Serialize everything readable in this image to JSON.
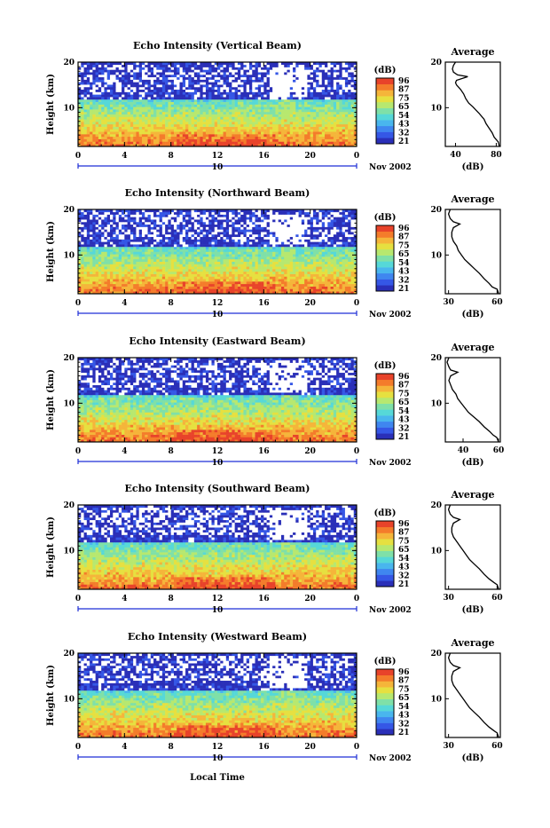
{
  "colors": {
    "scale": [
      "#2a2fb8",
      "#3557e6",
      "#3f86f0",
      "#49b6ee",
      "#56d8d8",
      "#7fe0a8",
      "#b7e86f",
      "#e6e040",
      "#f5b53a",
      "#f47c2b",
      "#e8432a"
    ],
    "accent_blue": "#1f2fd6"
  },
  "date_label": "Nov 2002",
  "date_day": "10",
  "xlabel": "Local Time",
  "avg_xlabel": "(dB)",
  "chart_data": [
    {
      "type": "heatmap",
      "title": "Echo Intensity (Vertical Beam)",
      "ylabel": "Height (km)",
      "xlabel": "Local Time",
      "x_ticks": [
        "0",
        "4",
        "8",
        "12",
        "16",
        "20",
        "0"
      ],
      "y_ticks": [
        "10",
        "20"
      ],
      "xlim": [
        0,
        24
      ],
      "ylim": [
        1.5,
        20
      ],
      "colorbar": {
        "label": "(dB)",
        "ticks": [
          "96",
          "87",
          "75",
          "65",
          "54",
          "43",
          "32",
          "21"
        ]
      },
      "average": {
        "title": "Average",
        "xlabel": "(dB)",
        "x_ticks": [
          "40",
          "80"
        ],
        "xlim": [
          30,
          84
        ],
        "y_ticks": [
          "10",
          "20"
        ],
        "profile": [
          [
            83,
            1.5
          ],
          [
            82,
            2.5
          ],
          [
            80,
            3.0
          ],
          [
            78,
            3.5
          ],
          [
            76,
            4.5
          ],
          [
            73,
            5.5
          ],
          [
            70,
            6.5
          ],
          [
            68,
            7.5
          ],
          [
            66,
            8.0
          ],
          [
            63,
            8.8
          ],
          [
            60,
            9.5
          ],
          [
            57,
            10.2
          ],
          [
            53,
            11.0
          ],
          [
            50,
            12.0
          ],
          [
            48,
            13.0
          ],
          [
            45,
            14.0
          ],
          [
            41,
            15.0
          ],
          [
            40,
            15.5
          ],
          [
            41,
            16.0
          ],
          [
            52,
            16.8
          ],
          [
            42,
            17.2
          ],
          [
            38,
            17.8
          ],
          [
            37,
            18.5
          ],
          [
            38,
            19.3
          ],
          [
            40,
            20.0
          ]
        ]
      }
    },
    {
      "type": "heatmap",
      "title": "Echo Intensity (Northward Beam)",
      "ylabel": "Height (km)",
      "xlabel": "Local Time",
      "x_ticks": [
        "0",
        "4",
        "8",
        "12",
        "16",
        "20",
        "0"
      ],
      "y_ticks": [
        "10",
        "20"
      ],
      "xlim": [
        0,
        24
      ],
      "ylim": [
        1.5,
        20
      ],
      "colorbar": {
        "label": "(dB)",
        "ticks": [
          "96",
          "87",
          "75",
          "65",
          "54",
          "43",
          "32",
          "21"
        ]
      },
      "average": {
        "title": "Average",
        "xlabel": "(dB)",
        "x_ticks": [
          "30",
          "60"
        ],
        "xlim": [
          28,
          62
        ],
        "y_ticks": [
          "10",
          "20"
        ],
        "profile": [
          [
            61,
            1.5
          ],
          [
            60,
            2.5
          ],
          [
            57,
            3.0
          ],
          [
            55,
            3.8
          ],
          [
            52,
            4.8
          ],
          [
            49,
            6.0
          ],
          [
            46,
            7.0
          ],
          [
            43,
            8.0
          ],
          [
            40,
            9.0
          ],
          [
            38,
            10.0
          ],
          [
            36,
            11.0
          ],
          [
            35,
            12.0
          ],
          [
            33,
            13.0
          ],
          [
            32,
            14.0
          ],
          [
            32,
            15.0
          ],
          [
            33,
            16.0
          ],
          [
            37,
            16.8
          ],
          [
            33,
            17.3
          ],
          [
            31,
            18.0
          ],
          [
            30,
            19.0
          ],
          [
            31,
            20.0
          ]
        ]
      }
    },
    {
      "type": "heatmap",
      "title": "Echo Intensity (Eastward Beam)",
      "ylabel": "Height (km)",
      "xlabel": "Local Time",
      "x_ticks": [
        "0",
        "4",
        "8",
        "12",
        "16",
        "20",
        "0"
      ],
      "y_ticks": [
        "10",
        "20"
      ],
      "xlim": [
        0,
        24
      ],
      "ylim": [
        1.5,
        20
      ],
      "colorbar": {
        "label": "(dB)",
        "ticks": [
          "96",
          "87",
          "75",
          "65",
          "54",
          "43",
          "32",
          "21"
        ]
      },
      "average": {
        "title": "Average",
        "xlabel": "(dB)",
        "x_ticks": [
          "40",
          "60"
        ],
        "xlim": [
          30,
          61
        ],
        "y_ticks": [
          "10",
          "20"
        ],
        "profile": [
          [
            60,
            1.5
          ],
          [
            59,
            2.5
          ],
          [
            57,
            3.0
          ],
          [
            55,
            3.8
          ],
          [
            52,
            4.8
          ],
          [
            49,
            6.0
          ],
          [
            46,
            7.0
          ],
          [
            43,
            8.0
          ],
          [
            41,
            9.0
          ],
          [
            39,
            10.0
          ],
          [
            37,
            11.0
          ],
          [
            36,
            12.0
          ],
          [
            34,
            13.0
          ],
          [
            33,
            14.0
          ],
          [
            32,
            15.0
          ],
          [
            33,
            16.0
          ],
          [
            37,
            16.8
          ],
          [
            33,
            17.3
          ],
          [
            32,
            18.0
          ],
          [
            31,
            19.0
          ],
          [
            32,
            20.0
          ]
        ]
      }
    },
    {
      "type": "heatmap",
      "title": "Echo Intensity (Southward Beam)",
      "ylabel": "Height (km)",
      "xlabel": "Local Time",
      "x_ticks": [
        "0",
        "4",
        "8",
        "12",
        "16",
        "20",
        "0"
      ],
      "y_ticks": [
        "10",
        "20"
      ],
      "xlim": [
        0,
        24
      ],
      "ylim": [
        1.5,
        20
      ],
      "colorbar": {
        "label": "(dB)",
        "ticks": [
          "96",
          "87",
          "75",
          "65",
          "54",
          "43",
          "32",
          "21"
        ]
      },
      "average": {
        "title": "Average",
        "xlabel": "(dB)",
        "x_ticks": [
          "30",
          "60"
        ],
        "xlim": [
          28,
          62
        ],
        "y_ticks": [
          "10",
          "20"
        ],
        "profile": [
          [
            61,
            1.5
          ],
          [
            60,
            2.5
          ],
          [
            58,
            3.0
          ],
          [
            55,
            3.8
          ],
          [
            52,
            4.8
          ],
          [
            49,
            6.0
          ],
          [
            46,
            7.0
          ],
          [
            43,
            8.0
          ],
          [
            41,
            9.0
          ],
          [
            39,
            10.0
          ],
          [
            37,
            11.0
          ],
          [
            35,
            12.0
          ],
          [
            33,
            13.0
          ],
          [
            32,
            14.0
          ],
          [
            32,
            15.0
          ],
          [
            33,
            16.0
          ],
          [
            37,
            16.8
          ],
          [
            33,
            17.3
          ],
          [
            31,
            18.0
          ],
          [
            30,
            19.0
          ],
          [
            31,
            20.0
          ]
        ]
      }
    },
    {
      "type": "heatmap",
      "title": "Echo Intensity (Westward Beam)",
      "ylabel": "Height (km)",
      "xlabel": "Local Time",
      "x_ticks": [
        "0",
        "4",
        "8",
        "12",
        "16",
        "20",
        "0"
      ],
      "y_ticks": [
        "10",
        "20"
      ],
      "xlim": [
        0,
        24
      ],
      "ylim": [
        1.5,
        20
      ],
      "colorbar": {
        "label": "(dB)",
        "ticks": [
          "96",
          "87",
          "75",
          "65",
          "54",
          "43",
          "32",
          "21"
        ]
      },
      "average": {
        "title": "Average",
        "xlabel": "(dB)",
        "x_ticks": [
          "30",
          "60"
        ],
        "xlim": [
          28,
          62
        ],
        "y_ticks": [
          "10",
          "20"
        ],
        "profile": [
          [
            61,
            1.5
          ],
          [
            60,
            2.5
          ],
          [
            58,
            3.0
          ],
          [
            55,
            3.8
          ],
          [
            52,
            4.8
          ],
          [
            49,
            6.0
          ],
          [
            46,
            7.0
          ],
          [
            43,
            8.0
          ],
          [
            41,
            9.0
          ],
          [
            39,
            10.0
          ],
          [
            37,
            11.0
          ],
          [
            35,
            12.0
          ],
          [
            33,
            13.0
          ],
          [
            32,
            14.0
          ],
          [
            32,
            15.0
          ],
          [
            33,
            16.0
          ],
          [
            37,
            16.8
          ],
          [
            33,
            17.3
          ],
          [
            31,
            18.0
          ],
          [
            30,
            19.0
          ],
          [
            31,
            20.0
          ]
        ]
      }
    }
  ]
}
